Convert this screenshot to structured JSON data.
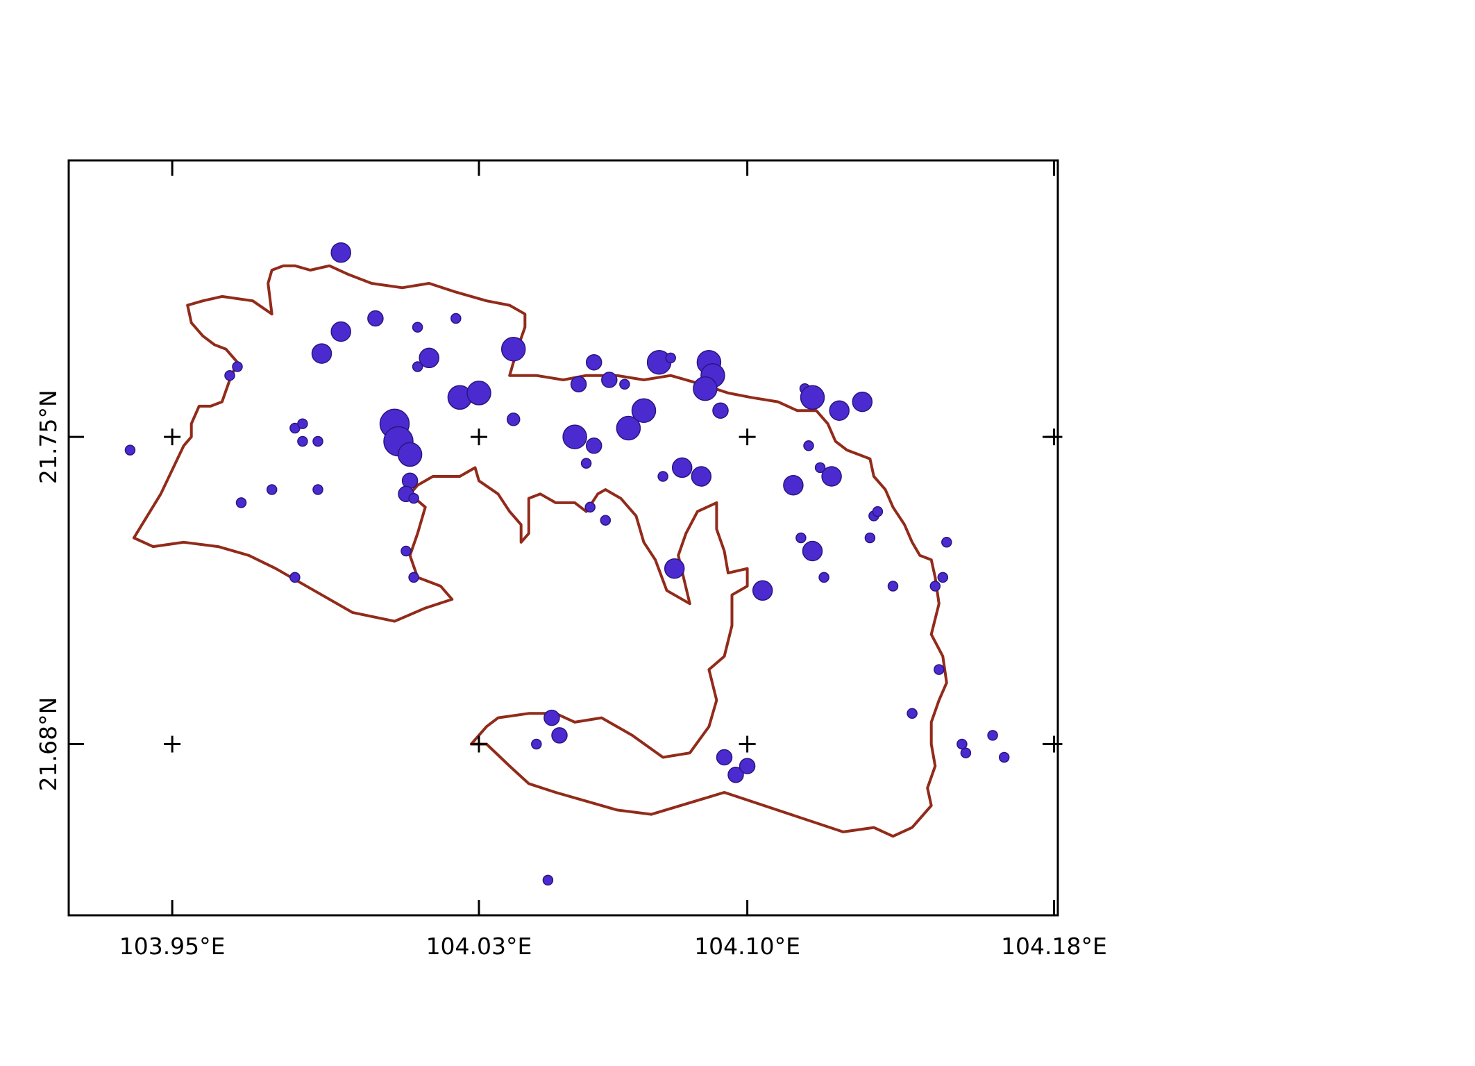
{
  "map": {
    "axes": {
      "x_range": [
        103.923,
        104.181
      ],
      "y_range": [
        21.641,
        21.813
      ],
      "x_ticks": [
        103.95,
        104.03,
        104.1,
        104.18
      ],
      "x_tick_labels": [
        "103.95°E",
        "104.03°E",
        "104.10°E",
        "104.18°E"
      ],
      "y_ticks": [
        21.75,
        21.68
      ],
      "y_tick_labels": [
        "21.75°N",
        "21.68°N"
      ],
      "grid_crosses": true
    },
    "colors": {
      "boundary": "#922b1a",
      "point_fill": "#4b2bd0",
      "point_stroke": "#2a1580",
      "frame": "#000000"
    },
    "boundary": [
      [
        103.958,
        21.773
      ],
      [
        103.955,
        21.776
      ],
      [
        103.954,
        21.78
      ],
      [
        103.958,
        21.781
      ],
      [
        103.963,
        21.782
      ],
      [
        103.971,
        21.781
      ],
      [
        103.976,
        21.778
      ],
      [
        103.975,
        21.785
      ],
      [
        103.976,
        21.788
      ],
      [
        103.979,
        21.789
      ],
      [
        103.982,
        21.789
      ],
      [
        103.986,
        21.788
      ],
      [
        103.991,
        21.789
      ],
      [
        103.996,
        21.787
      ],
      [
        104.002,
        21.785
      ],
      [
        104.01,
        21.784
      ],
      [
        104.017,
        21.785
      ],
      [
        104.024,
        21.783
      ],
      [
        104.032,
        21.781
      ],
      [
        104.038,
        21.78
      ],
      [
        104.042,
        21.778
      ],
      [
        104.042,
        21.775
      ],
      [
        104.04,
        21.77
      ],
      [
        104.038,
        21.764
      ],
      [
        104.045,
        21.764
      ],
      [
        104.052,
        21.763
      ],
      [
        104.058,
        21.764
      ],
      [
        104.066,
        21.764
      ],
      [
        104.073,
        21.763
      ],
      [
        104.08,
        21.764
      ],
      [
        104.088,
        21.762
      ],
      [
        104.095,
        21.76
      ],
      [
        104.101,
        21.759
      ],
      [
        104.108,
        21.758
      ],
      [
        104.113,
        21.756
      ],
      [
        104.118,
        21.756
      ],
      [
        104.121,
        21.753
      ],
      [
        104.123,
        21.749
      ],
      [
        104.126,
        21.747
      ],
      [
        104.129,
        21.746
      ],
      [
        104.132,
        21.745
      ],
      [
        104.133,
        21.741
      ],
      [
        104.136,
        21.738
      ],
      [
        104.138,
        21.734
      ],
      [
        104.141,
        21.73
      ],
      [
        104.143,
        21.726
      ],
      [
        104.145,
        21.723
      ],
      [
        104.148,
        21.722
      ],
      [
        104.149,
        21.718
      ],
      [
        104.15,
        21.712
      ],
      [
        104.148,
        21.705
      ],
      [
        104.151,
        21.7
      ],
      [
        104.152,
        21.694
      ],
      [
        104.15,
        21.69
      ],
      [
        104.148,
        21.685
      ],
      [
        104.148,
        21.68
      ],
      [
        104.149,
        21.675
      ],
      [
        104.147,
        21.67
      ],
      [
        104.148,
        21.666
      ],
      [
        104.143,
        21.661
      ],
      [
        104.138,
        21.659
      ],
      [
        104.133,
        21.661
      ],
      [
        104.125,
        21.66
      ],
      [
        104.094,
        21.669
      ],
      [
        104.075,
        21.664
      ],
      [
        104.066,
        21.665
      ],
      [
        104.05,
        21.669
      ],
      [
        104.043,
        21.671
      ],
      [
        104.038,
        21.675
      ],
      [
        104.032,
        21.68
      ],
      [
        104.028,
        21.68
      ],
      [
        104.032,
        21.684
      ],
      [
        104.035,
        21.686
      ],
      [
        104.043,
        21.687
      ],
      [
        104.05,
        21.687
      ],
      [
        104.055,
        21.685
      ],
      [
        104.062,
        21.686
      ],
      [
        104.07,
        21.682
      ],
      [
        104.078,
        21.677
      ],
      [
        104.085,
        21.678
      ],
      [
        104.09,
        21.684
      ],
      [
        104.092,
        21.69
      ],
      [
        104.09,
        21.697
      ],
      [
        104.094,
        21.7
      ],
      [
        104.096,
        21.707
      ],
      [
        104.096,
        21.714
      ],
      [
        104.1,
        21.716
      ],
      [
        104.1,
        21.72
      ],
      [
        104.095,
        21.719
      ],
      [
        104.094,
        21.724
      ],
      [
        104.092,
        21.729
      ],
      [
        104.092,
        21.735
      ],
      [
        104.087,
        21.733
      ],
      [
        104.084,
        21.728
      ],
      [
        104.082,
        21.723
      ],
      [
        104.085,
        21.712
      ],
      [
        104.079,
        21.715
      ],
      [
        104.076,
        21.722
      ],
      [
        104.073,
        21.726
      ],
      [
        104.071,
        21.732
      ],
      [
        104.067,
        21.736
      ],
      [
        104.063,
        21.738
      ],
      [
        104.061,
        21.737
      ],
      [
        104.058,
        21.733
      ],
      [
        104.055,
        21.735
      ],
      [
        104.05,
        21.735
      ],
      [
        104.046,
        21.737
      ],
      [
        104.043,
        21.736
      ],
      [
        104.043,
        21.728
      ],
      [
        104.041,
        21.726
      ],
      [
        104.041,
        21.73
      ],
      [
        104.038,
        21.733
      ],
      [
        104.035,
        21.737
      ],
      [
        104.03,
        21.74
      ],
      [
        104.029,
        21.743
      ],
      [
        104.025,
        21.741
      ],
      [
        104.018,
        21.741
      ],
      [
        104.014,
        21.739
      ],
      [
        104.012,
        21.737
      ],
      [
        104.016,
        21.734
      ],
      [
        104.014,
        21.728
      ],
      [
        104.012,
        21.723
      ],
      [
        104.014,
        21.718
      ],
      [
        104.02,
        21.716
      ],
      [
        104.023,
        21.713
      ],
      [
        104.016,
        21.711
      ],
      [
        104.008,
        21.708
      ],
      [
        103.997,
        21.71
      ],
      [
        103.987,
        21.715
      ],
      [
        103.977,
        21.72
      ],
      [
        103.97,
        21.723
      ],
      [
        103.962,
        21.725
      ],
      [
        103.953,
        21.726
      ],
      [
        103.945,
        21.725
      ],
      [
        103.94,
        21.727
      ],
      [
        103.947,
        21.737
      ],
      [
        103.953,
        21.748
      ],
      [
        103.955,
        21.75
      ],
      [
        103.955,
        21.753
      ],
      [
        103.957,
        21.757
      ],
      [
        103.96,
        21.757
      ],
      [
        103.963,
        21.758
      ],
      [
        103.965,
        21.763
      ],
      [
        103.967,
        21.767
      ],
      [
        103.964,
        21.77
      ],
      [
        103.961,
        21.771
      ],
      [
        103.958,
        21.773
      ]
    ],
    "points": [
      [
        103.939,
        21.747,
        2
      ],
      [
        103.965,
        21.764,
        2
      ],
      [
        103.967,
        21.766,
        2
      ],
      [
        103.968,
        21.735,
        2
      ],
      [
        103.976,
        21.738,
        2
      ],
      [
        103.982,
        21.752,
        2
      ],
      [
        103.984,
        21.753,
        2
      ],
      [
        103.984,
        21.749,
        2
      ],
      [
        103.988,
        21.749,
        2
      ],
      [
        103.988,
        21.738,
        2
      ],
      [
        103.982,
        21.718,
        2
      ],
      [
        103.989,
        21.769,
        5
      ],
      [
        103.994,
        21.792,
        5
      ],
      [
        103.994,
        21.774,
        5
      ],
      [
        104.003,
        21.777,
        4
      ],
      [
        104.014,
        21.775,
        2
      ],
      [
        104.014,
        21.766,
        2
      ],
      [
        104.017,
        21.768,
        5
      ],
      [
        104.025,
        21.759,
        6
      ],
      [
        104.03,
        21.76,
        6
      ],
      [
        104.024,
        21.777,
        2
      ],
      [
        104.039,
        21.77,
        6
      ],
      [
        104.008,
        21.753,
        7
      ],
      [
        104.009,
        21.749,
        7
      ],
      [
        104.012,
        21.746,
        6
      ],
      [
        104.012,
        21.74,
        4
      ],
      [
        104.011,
        21.737,
        4
      ],
      [
        104.013,
        21.736,
        2
      ],
      [
        104.011,
        21.724,
        2
      ],
      [
        104.013,
        21.718,
        2
      ],
      [
        104.039,
        21.754,
        3
      ],
      [
        104.045,
        21.68,
        2
      ],
      [
        104.049,
        21.686,
        4
      ],
      [
        104.051,
        21.682,
        4
      ],
      [
        104.048,
        21.649,
        2
      ],
      [
        104.055,
        21.75,
        6
      ],
      [
        104.056,
        21.762,
        4
      ],
      [
        104.058,
        21.744,
        2
      ],
      [
        104.06,
        21.767,
        4
      ],
      [
        104.064,
        21.763,
        4
      ],
      [
        104.063,
        21.731,
        2
      ],
      [
        104.06,
        21.748,
        4
      ],
      [
        104.059,
        21.734,
        2
      ],
      [
        104.068,
        21.762,
        2
      ],
      [
        104.069,
        21.752,
        6
      ],
      [
        104.073,
        21.756,
        6
      ],
      [
        104.077,
        21.767,
        6
      ],
      [
        104.08,
        21.768,
        2
      ],
      [
        104.078,
        21.741,
        2
      ],
      [
        104.083,
        21.743,
        5
      ],
      [
        104.088,
        21.741,
        5
      ],
      [
        104.09,
        21.767,
        6
      ],
      [
        104.091,
        21.764,
        6
      ],
      [
        104.089,
        21.761,
        6
      ],
      [
        104.093,
        21.756,
        4
      ],
      [
        104.081,
        21.72,
        5
      ],
      [
        104.104,
        21.715,
        5
      ],
      [
        104.094,
        21.677,
        4
      ],
      [
        104.097,
        21.673,
        4
      ],
      [
        104.1,
        21.675,
        4
      ],
      [
        104.112,
        21.739,
        5
      ],
      [
        104.115,
        21.761,
        2
      ],
      [
        104.117,
        21.759,
        6
      ],
      [
        104.124,
        21.756,
        5
      ],
      [
        104.13,
        21.758,
        5
      ],
      [
        104.116,
        21.748,
        2
      ],
      [
        104.119,
        21.743,
        2
      ],
      [
        104.122,
        21.741,
        5
      ],
      [
        104.114,
        21.727,
        2
      ],
      [
        104.117,
        21.724,
        5
      ],
      [
        104.12,
        21.718,
        2
      ],
      [
        104.133,
        21.732,
        2
      ],
      [
        104.134,
        21.733,
        2
      ],
      [
        104.132,
        21.727,
        2
      ],
      [
        104.138,
        21.716,
        2
      ],
      [
        104.149,
        21.716,
        2
      ],
      [
        104.151,
        21.718,
        2
      ],
      [
        104.152,
        21.726,
        2
      ],
      [
        104.15,
        21.697,
        2
      ],
      [
        104.143,
        21.687,
        2
      ],
      [
        104.156,
        21.68,
        2
      ],
      [
        104.157,
        21.678,
        2
      ],
      [
        104.164,
        21.682,
        2
      ],
      [
        104.167,
        21.677,
        2
      ]
    ]
  }
}
